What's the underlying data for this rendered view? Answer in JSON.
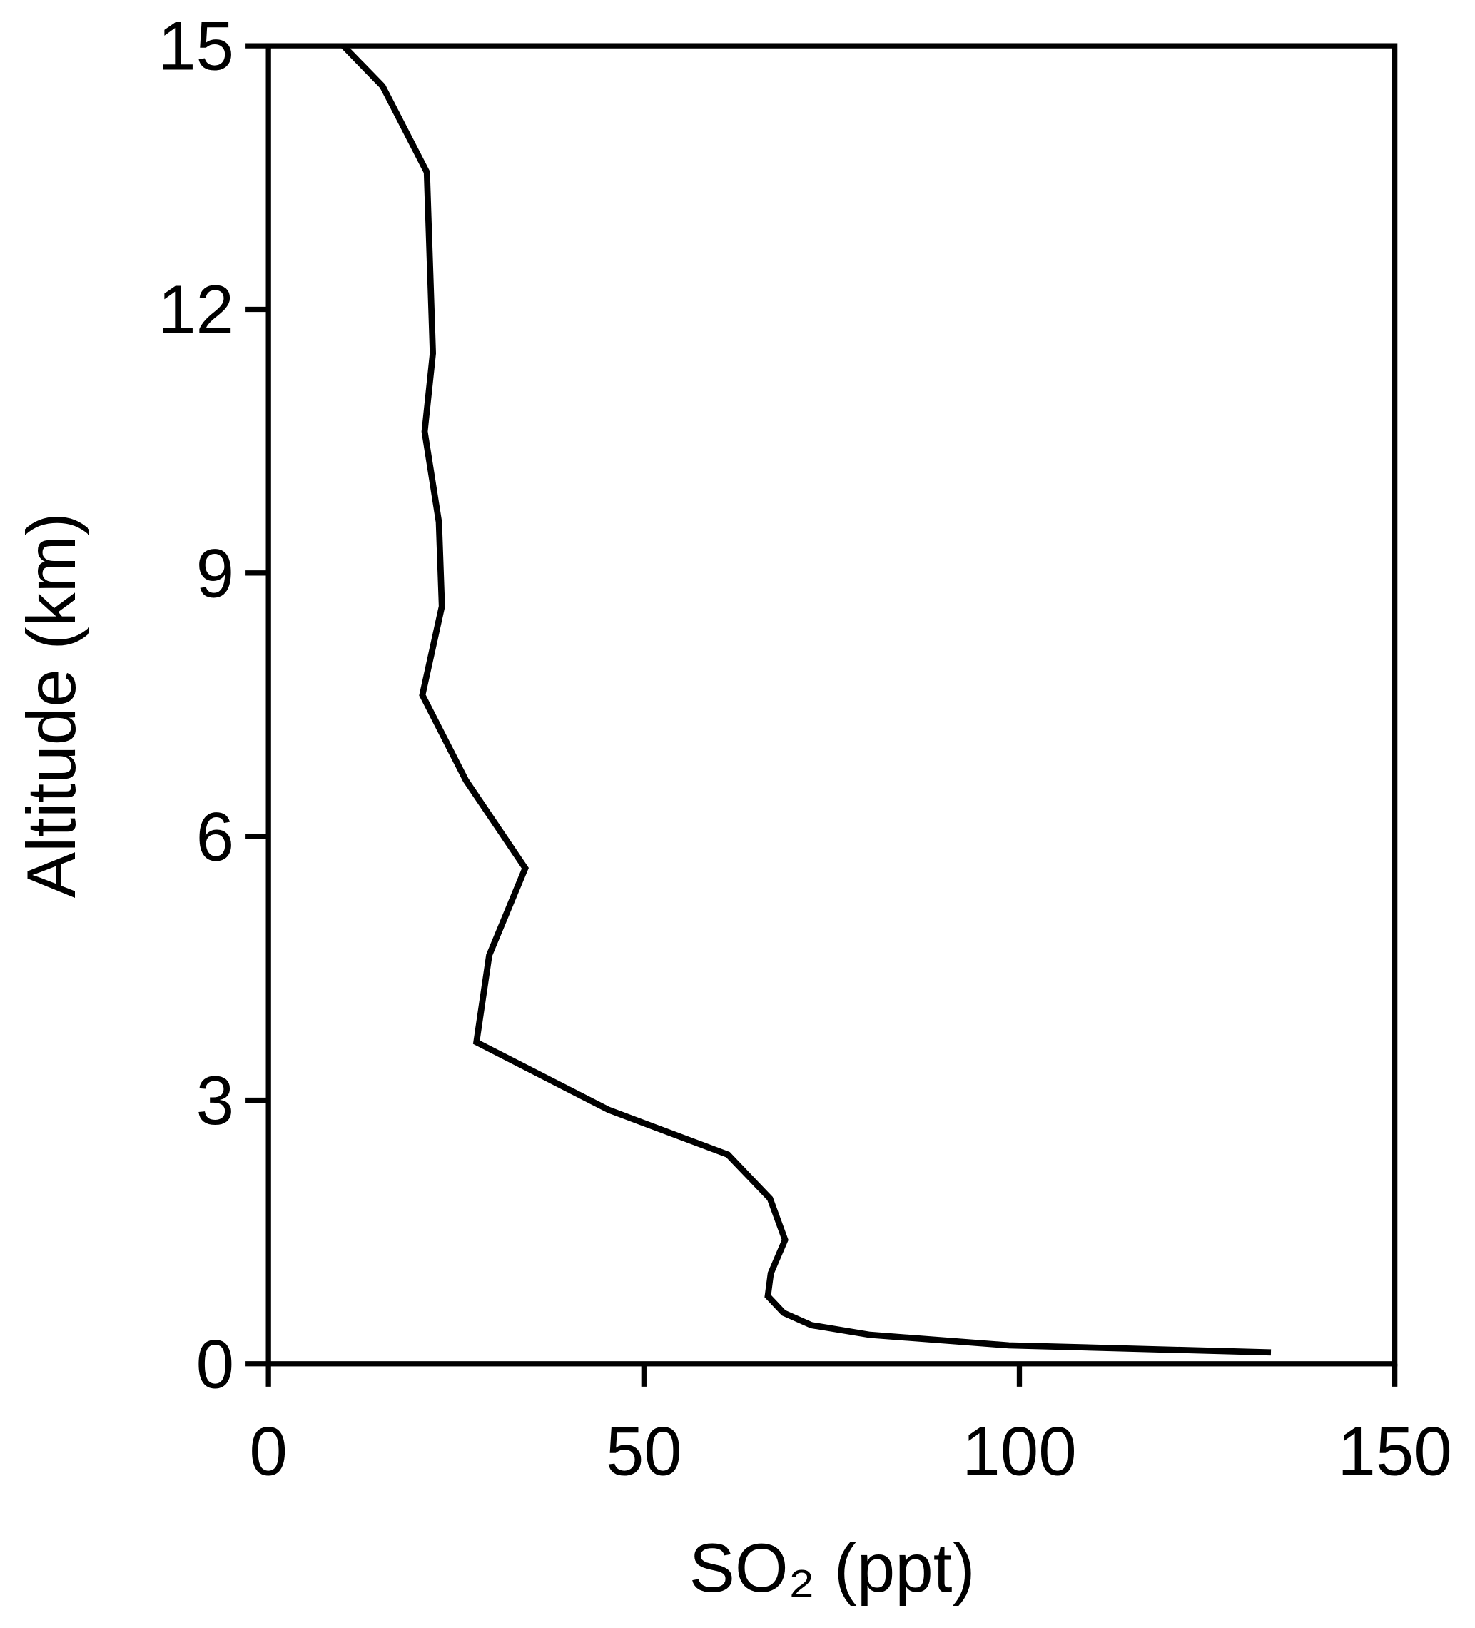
{
  "chart_data": {
    "type": "line",
    "xlabel": "SO₂ (ppt)",
    "ylabel": "Altitude (km)",
    "x": [
      9.97,
      15.2,
      21.1,
      21.9,
      20.8,
      22.7,
      23.1,
      20.5,
      26.3,
      34.2,
      29.4,
      27.7,
      45.3,
      61.2,
      66.8,
      68.8,
      66.9,
      66.5,
      68.6,
      72.3,
      80.1,
      98.6,
      133.5
    ],
    "values": [
      15,
      14.54,
      13.56,
      11.5,
      10.61,
      9.58,
      8.62,
      7.61,
      6.64,
      5.64,
      4.65,
      3.66,
      2.89,
      2.38,
      1.88,
      1.41,
      1.03,
      0.77,
      0.58,
      0.44,
      0.33,
      0.21,
      0.13
    ],
    "color": "#000000",
    "xlim": [
      0,
      150
    ],
    "xticks": [
      0,
      50,
      100,
      150
    ],
    "ylim": [
      0,
      15
    ],
    "yticks": [
      0,
      3,
      6,
      9,
      12,
      15
    ]
  }
}
